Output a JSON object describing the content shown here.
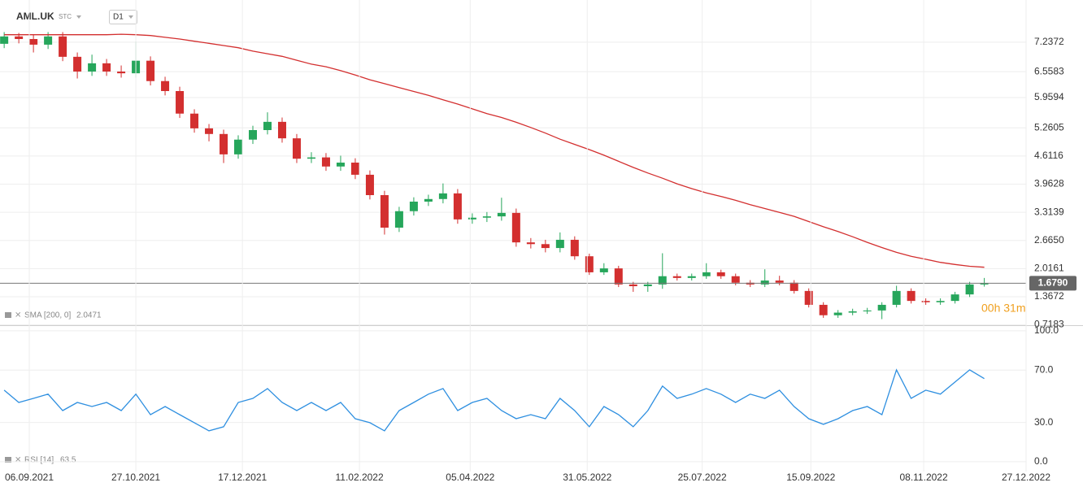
{
  "chart_data": [
    {
      "type": "candlestick",
      "title": "AML.UK",
      "subtitle": "STC",
      "timeframe": "D1",
      "annotation": "00h 31m",
      "up_color": "#26a65b",
      "down_color": "#d32f2f",
      "grid": true,
      "x": [
        "2021-08-25",
        "2021-09-01",
        "2021-09-08",
        "2021-09-15",
        "2021-09-22",
        "2021-09-29",
        "2021-10-06",
        "2021-10-13",
        "2021-10-20",
        "2021-10-27",
        "2021-11-03",
        "2021-11-10",
        "2021-11-17",
        "2021-11-24",
        "2021-12-01",
        "2021-12-08",
        "2021-12-15",
        "2021-12-22",
        "2021-12-29",
        "2022-01-05",
        "2022-01-12",
        "2022-01-19",
        "2022-01-26",
        "2022-02-02",
        "2022-02-09",
        "2022-02-16",
        "2022-02-23",
        "2022-03-02",
        "2022-03-09",
        "2022-03-16",
        "2022-03-23",
        "2022-03-30",
        "2022-04-06",
        "2022-04-13",
        "2022-04-20",
        "2022-04-27",
        "2022-05-04",
        "2022-05-11",
        "2022-05-18",
        "2022-05-25",
        "2022-06-01",
        "2022-06-08",
        "2022-06-15",
        "2022-06-22",
        "2022-06-29",
        "2022-07-06",
        "2022-07-13",
        "2022-07-20",
        "2022-07-27",
        "2022-08-03",
        "2022-08-10",
        "2022-08-17",
        "2022-08-24",
        "2022-08-31",
        "2022-09-07",
        "2022-09-14",
        "2022-09-21",
        "2022-09-28",
        "2022-10-05",
        "2022-10-12",
        "2022-10-19",
        "2022-10-26",
        "2022-11-02",
        "2022-11-09",
        "2022-11-16",
        "2022-11-23",
        "2022-11-30",
        "2022-12-07"
      ],
      "open": [
        7.2,
        7.37,
        7.31,
        7.18,
        7.37,
        6.9,
        6.56,
        6.75,
        6.56,
        6.52,
        6.81,
        6.34,
        6.11,
        5.59,
        5.25,
        5.12,
        4.65,
        4.99,
        5.21,
        5.4,
        5.02,
        4.55,
        4.58,
        4.37,
        4.46,
        4.18,
        3.71,
        2.96,
        3.34,
        3.56,
        3.62,
        3.75,
        3.15,
        3.19,
        3.22,
        3.3,
        2.62,
        2.58,
        2.49,
        2.68,
        2.3,
        1.93,
        2.02,
        1.65,
        1.61,
        1.65,
        1.84,
        1.8,
        1.84,
        1.93,
        1.84,
        1.69,
        1.65,
        1.74,
        1.69,
        1.5,
        1.18,
        0.94,
        1.0,
        1.03,
        1.05,
        1.18,
        1.5,
        1.27,
        1.24,
        1.27,
        1.42,
        1.65
      ],
      "high": [
        7.47,
        7.45,
        7.41,
        7.47,
        7.47,
        7.0,
        6.95,
        6.85,
        6.7,
        7.25,
        6.91,
        6.44,
        6.21,
        5.69,
        5.35,
        5.22,
        5.09,
        5.31,
        5.62,
        5.5,
        5.12,
        4.7,
        4.68,
        4.62,
        4.56,
        4.28,
        3.81,
        3.44,
        3.66,
        3.72,
        3.98,
        3.85,
        3.29,
        3.32,
        3.65,
        3.4,
        2.72,
        2.68,
        2.85,
        2.76,
        2.36,
        2.14,
        2.08,
        1.71,
        1.71,
        2.37,
        1.9,
        1.9,
        2.14,
        1.99,
        1.9,
        1.75,
        2.0,
        1.85,
        1.75,
        1.56,
        1.24,
        1.06,
        1.09,
        1.11,
        1.24,
        1.62,
        1.56,
        1.33,
        1.33,
        1.48,
        1.71,
        1.8
      ],
      "low": [
        7.1,
        7.21,
        7.0,
        7.08,
        6.8,
        6.4,
        6.46,
        6.46,
        6.42,
        6.42,
        6.24,
        6.01,
        5.49,
        5.15,
        4.95,
        4.45,
        4.55,
        4.89,
        5.11,
        4.92,
        4.45,
        4.45,
        4.27,
        4.27,
        4.08,
        3.61,
        2.8,
        2.86,
        3.24,
        3.46,
        3.52,
        3.05,
        3.05,
        3.09,
        3.12,
        2.52,
        2.48,
        2.39,
        2.39,
        2.22,
        1.87,
        1.87,
        1.59,
        1.48,
        1.48,
        1.55,
        1.74,
        1.74,
        1.78,
        1.78,
        1.63,
        1.59,
        1.59,
        1.63,
        1.44,
        1.12,
        0.88,
        0.88,
        0.94,
        0.97,
        0.85,
        1.12,
        1.21,
        1.18,
        1.18,
        1.21,
        1.36,
        1.6
      ],
      "close": [
        7.37,
        7.31,
        7.18,
        7.37,
        6.9,
        6.56,
        6.75,
        6.56,
        6.52,
        6.81,
        6.34,
        6.11,
        5.59,
        5.25,
        5.12,
        4.65,
        4.99,
        5.21,
        5.4,
        5.02,
        4.55,
        4.58,
        4.37,
        4.46,
        4.18,
        3.71,
        2.96,
        3.34,
        3.56,
        3.62,
        3.75,
        3.15,
        3.19,
        3.22,
        3.3,
        2.62,
        2.58,
        2.49,
        2.68,
        2.3,
        1.93,
        2.02,
        1.65,
        1.61,
        1.65,
        1.84,
        1.8,
        1.84,
        1.93,
        1.84,
        1.69,
        1.65,
        1.74,
        1.69,
        1.5,
        1.18,
        0.94,
        1.0,
        1.03,
        1.05,
        1.18,
        1.5,
        1.27,
        1.24,
        1.27,
        1.42,
        1.65,
        1.679
      ],
      "series": [
        {
          "name": "SMA [200, 0]",
          "color": "#d32f2f",
          "values": [
            7.41,
            7.41,
            7.41,
            7.41,
            7.41,
            7.41,
            7.41,
            7.41,
            7.42,
            7.41,
            7.39,
            7.35,
            7.31,
            7.26,
            7.21,
            7.16,
            7.11,
            7.03,
            6.97,
            6.91,
            6.82,
            6.73,
            6.67,
            6.58,
            6.48,
            6.37,
            6.28,
            6.19,
            6.1,
            6.01,
            5.91,
            5.81,
            5.7,
            5.59,
            5.5,
            5.39,
            5.27,
            5.14,
            5.0,
            4.88,
            4.76,
            4.63,
            4.49,
            4.35,
            4.22,
            4.1,
            3.97,
            3.86,
            3.76,
            3.68,
            3.59,
            3.49,
            3.4,
            3.31,
            3.22,
            3.1,
            2.98,
            2.87,
            2.75,
            2.62,
            2.5,
            2.39,
            2.3,
            2.23,
            2.16,
            2.11,
            2.07,
            2.0471
          ]
        }
      ],
      "current_price": {
        "value": 1.679,
        "label": "1.6790"
      },
      "xlim": [
        "2021-08-23",
        "2022-12-27"
      ],
      "ylim": [
        0.71,
        8.21
      ],
      "yticks": [
        7.2372,
        6.5583,
        5.9594,
        5.2605,
        4.6116,
        3.9628,
        3.3139,
        {
          "value": 2.665,
          "label": "2.6650"
        },
        2.0161,
        1.3672,
        0.7183
      ]
    },
    {
      "type": "line",
      "grid": true,
      "x": [
        "2021-08-25",
        "2021-09-01",
        "2021-09-08",
        "2021-09-15",
        "2021-09-22",
        "2021-09-29",
        "2021-10-06",
        "2021-10-13",
        "2021-10-20",
        "2021-10-27",
        "2021-11-03",
        "2021-11-10",
        "2021-11-17",
        "2021-11-24",
        "2021-12-01",
        "2021-12-08",
        "2021-12-15",
        "2021-12-22",
        "2021-12-29",
        "2022-01-05",
        "2022-01-12",
        "2022-01-19",
        "2022-01-26",
        "2022-02-02",
        "2022-02-09",
        "2022-02-16",
        "2022-02-23",
        "2022-03-02",
        "2022-03-09",
        "2022-03-16",
        "2022-03-23",
        "2022-03-30",
        "2022-04-06",
        "2022-04-13",
        "2022-04-20",
        "2022-04-27",
        "2022-05-04",
        "2022-05-11",
        "2022-05-18",
        "2022-05-25",
        "2022-06-01",
        "2022-06-08",
        "2022-06-15",
        "2022-06-22",
        "2022-06-29",
        "2022-07-06",
        "2022-07-13",
        "2022-07-20",
        "2022-07-27",
        "2022-08-03",
        "2022-08-10",
        "2022-08-17",
        "2022-08-24",
        "2022-08-31",
        "2022-09-07",
        "2022-09-14",
        "2022-09-21",
        "2022-09-28",
        "2022-10-05",
        "2022-10-12",
        "2022-10-19",
        "2022-10-26",
        "2022-11-02",
        "2022-11-09",
        "2022-11-16",
        "2022-11-23",
        "2022-11-30",
        "2022-12-07"
      ],
      "series": [
        {
          "name": "RSI [14]",
          "color": "#2e8fe0",
          "values": [
            54.7,
            45.3,
            48.4,
            51.6,
            39.1,
            45.3,
            42.2,
            45.3,
            39.1,
            51.6,
            36.0,
            42.2,
            36.0,
            29.8,
            23.6,
            26.7,
            45.3,
            48.4,
            55.9,
            45.3,
            39.1,
            45.3,
            39.1,
            45.3,
            32.9,
            29.8,
            23.6,
            39.1,
            45.3,
            51.6,
            55.9,
            39.1,
            45.3,
            48.4,
            39.1,
            32.9,
            36.0,
            32.9,
            48.4,
            39.1,
            26.7,
            42.2,
            36.0,
            26.7,
            39.1,
            57.8,
            48.4,
            51.6,
            55.9,
            51.6,
            45.3,
            51.6,
            48.4,
            54.7,
            42.2,
            32.9,
            28.6,
            32.9,
            39.1,
            42.2,
            36.0,
            70.2,
            48.4,
            54.7,
            51.6,
            60.9,
            70.2,
            63.5
          ]
        }
      ],
      "xlim": [
        "2021-08-23",
        "2022-12-27"
      ],
      "xticks": [
        {
          "value": "2021-09-06",
          "label": "06.09.2021"
        },
        {
          "value": "2021-10-27",
          "label": "27.10.2021"
        },
        {
          "value": "2021-12-17",
          "label": "17.12.2021"
        },
        {
          "value": "2022-02-11",
          "label": "11.02.2022"
        },
        {
          "value": "2022-04-05",
          "label": "05.04.2022"
        },
        {
          "value": "2022-05-31",
          "label": "31.05.2022"
        },
        {
          "value": "2022-07-25",
          "label": "25.07.2022"
        },
        {
          "value": "2022-09-15",
          "label": "15.09.2022"
        },
        {
          "value": "2022-11-08",
          "label": "08.11.2022"
        },
        {
          "value": "2022-12-27",
          "label": "27.12.2022"
        }
      ],
      "ylim": [
        -7.5,
        104.3
      ],
      "yticks": [
        {
          "value": 100,
          "label": "100.0"
        },
        {
          "value": 70,
          "label": "70.0"
        },
        {
          "value": 30,
          "label": "30.0"
        },
        {
          "value": 0,
          "label": "0.0"
        }
      ]
    }
  ]
}
